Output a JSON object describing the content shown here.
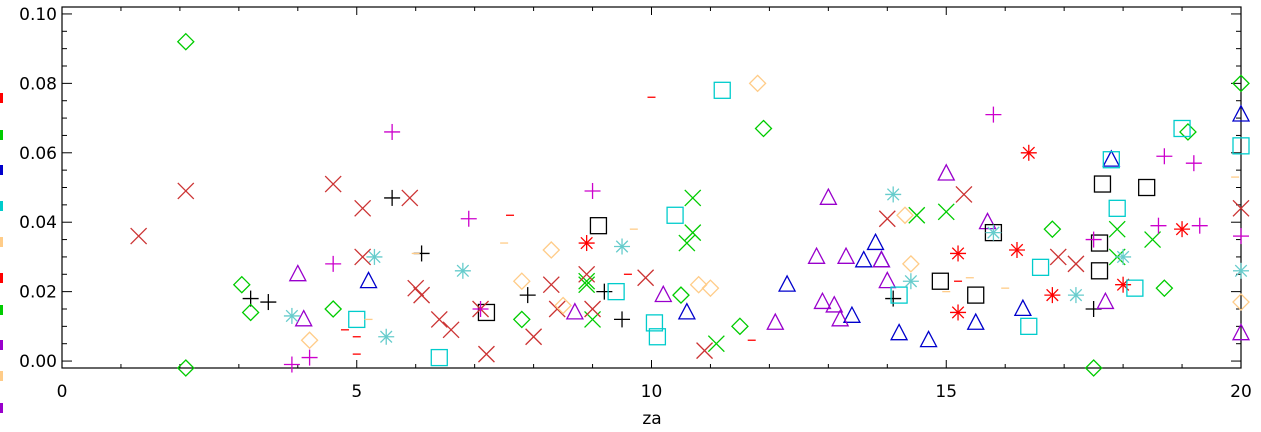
{
  "chart_data": {
    "type": "scatter",
    "xlabel": "za",
    "ylabel": "",
    "xlim": [
      0,
      20
    ],
    "ylim": [
      -0.002,
      0.102
    ],
    "xticks": [
      "0",
      "5",
      "10",
      "15",
      "20"
    ],
    "yticks": [
      "0.00",
      "0.02",
      "0.04",
      "0.06",
      "0.08",
      "0.10"
    ],
    "grid": false,
    "series": [
      {
        "marker": "plus",
        "color": "#000000",
        "points": [
          [
            3.2,
            0.018
          ],
          [
            3.5,
            0.017
          ],
          [
            5.6,
            0.047
          ],
          [
            6.1,
            0.031
          ],
          [
            7.9,
            0.019
          ],
          [
            9.2,
            0.02
          ],
          [
            9.5,
            0.012
          ],
          [
            14.1,
            0.018
          ],
          [
            17.5,
            0.015
          ]
        ]
      },
      {
        "marker": "asterisk",
        "color": "#ff0000",
        "points": [
          [
            8.9,
            0.034
          ],
          [
            15.2,
            0.031
          ],
          [
            15.2,
            0.014
          ],
          [
            16.2,
            0.032
          ],
          [
            16.4,
            0.06
          ],
          [
            16.8,
            0.019
          ],
          [
            18.0,
            0.022
          ],
          [
            19.0,
            0.038
          ]
        ]
      },
      {
        "marker": "dash",
        "color": "#ff0000",
        "points": [
          [
            4.8,
            0.009
          ],
          [
            5.0,
            0.007
          ],
          [
            5.0,
            0.002
          ],
          [
            7.6,
            0.042
          ],
          [
            9.6,
            0.025
          ],
          [
            10.0,
            0.076
          ],
          [
            11.7,
            0.006
          ],
          [
            15.2,
            0.023
          ]
        ]
      },
      {
        "marker": "diamond",
        "color": "#00cc00",
        "points": [
          [
            2.1,
            0.092
          ],
          [
            2.1,
            -0.002
          ],
          [
            3.05,
            0.022
          ],
          [
            3.2,
            0.014
          ],
          [
            4.6,
            0.015
          ],
          [
            7.8,
            0.012
          ],
          [
            10.5,
            0.019
          ],
          [
            11.5,
            0.01
          ],
          [
            11.9,
            0.067
          ],
          [
            16.8,
            0.038
          ],
          [
            17.5,
            -0.002
          ],
          [
            18.7,
            0.021
          ],
          [
            19.1,
            0.066
          ],
          [
            20.0,
            0.08
          ]
        ]
      },
      {
        "marker": "x",
        "color": "#00cc00",
        "points": [
          [
            8.9,
            0.023
          ],
          [
            8.9,
            0.022
          ],
          [
            9.0,
            0.012
          ],
          [
            10.6,
            0.034
          ],
          [
            10.7,
            0.037
          ],
          [
            10.7,
            0.047
          ],
          [
            11.1,
            0.005
          ],
          [
            14.5,
            0.042
          ],
          [
            15.0,
            0.043
          ],
          [
            17.9,
            0.038
          ],
          [
            17.9,
            0.03
          ],
          [
            18.5,
            0.035
          ]
        ]
      },
      {
        "marker": "triangle",
        "color": "#0000cc",
        "points": [
          [
            5.2,
            0.023
          ],
          [
            10.6,
            0.014
          ],
          [
            12.3,
            0.022
          ],
          [
            13.4,
            0.013
          ],
          [
            13.6,
            0.029
          ],
          [
            13.8,
            0.034
          ],
          [
            13.9,
            0.029
          ],
          [
            14.2,
            0.008
          ],
          [
            14.7,
            0.006
          ],
          [
            15.5,
            0.011
          ],
          [
            16.3,
            0.015
          ],
          [
            17.8,
            0.058
          ],
          [
            20.0,
            0.071
          ]
        ]
      },
      {
        "marker": "triangle",
        "color": "#9900cc",
        "points": [
          [
            4.0,
            0.025
          ],
          [
            4.1,
            0.012
          ],
          [
            8.7,
            0.014
          ],
          [
            10.2,
            0.019
          ],
          [
            12.1,
            0.011
          ],
          [
            12.8,
            0.03
          ],
          [
            12.9,
            0.017
          ],
          [
            13.0,
            0.047
          ],
          [
            13.1,
            0.016
          ],
          [
            13.2,
            0.012
          ],
          [
            13.3,
            0.03
          ],
          [
            13.9,
            0.029
          ],
          [
            14.0,
            0.023
          ],
          [
            15.0,
            0.054
          ],
          [
            15.7,
            0.04
          ],
          [
            17.7,
            0.017
          ],
          [
            20.0,
            0.008
          ]
        ]
      },
      {
        "marker": "square",
        "color": "#000000",
        "points": [
          [
            7.2,
            0.014
          ],
          [
            9.1,
            0.039
          ],
          [
            14.9,
            0.023
          ],
          [
            15.5,
            0.019
          ],
          [
            15.8,
            0.037
          ],
          [
            17.6,
            0.026
          ],
          [
            17.6,
            0.034
          ],
          [
            17.65,
            0.051
          ],
          [
            18.4,
            0.05
          ]
        ]
      },
      {
        "marker": "square",
        "color": "#00cccc",
        "points": [
          [
            5.0,
            0.012
          ],
          [
            6.4,
            0.001
          ],
          [
            9.4,
            0.02
          ],
          [
            10.05,
            0.011
          ],
          [
            10.1,
            0.007
          ],
          [
            10.4,
            0.042
          ],
          [
            11.2,
            0.078
          ],
          [
            14.2,
            0.019
          ],
          [
            16.4,
            0.01
          ],
          [
            16.6,
            0.027
          ],
          [
            17.8,
            0.058
          ],
          [
            17.9,
            0.044
          ],
          [
            18.2,
            0.021
          ],
          [
            19.0,
            0.067
          ],
          [
            20.0,
            0.062
          ]
        ]
      },
      {
        "marker": "asterisk",
        "color": "#66cccc",
        "points": [
          [
            3.9,
            0.013
          ],
          [
            5.3,
            0.03
          ],
          [
            5.5,
            0.007
          ],
          [
            6.8,
            0.026
          ],
          [
            9.5,
            0.033
          ],
          [
            14.1,
            0.048
          ],
          [
            14.4,
            0.023
          ],
          [
            15.8,
            0.037
          ],
          [
            17.2,
            0.019
          ],
          [
            18.0,
            0.03
          ],
          [
            20.0,
            0.026
          ]
        ]
      },
      {
        "marker": "x",
        "color": "#cc3333",
        "points": [
          [
            1.3,
            0.036
          ],
          [
            2.1,
            0.049
          ],
          [
            4.6,
            0.051
          ],
          [
            5.1,
            0.044
          ],
          [
            5.1,
            0.03
          ],
          [
            5.9,
            0.047
          ],
          [
            6.0,
            0.021
          ],
          [
            6.1,
            0.019
          ],
          [
            6.4,
            0.012
          ],
          [
            6.6,
            0.009
          ],
          [
            7.1,
            0.015
          ],
          [
            7.2,
            0.002
          ],
          [
            8.0,
            0.007
          ],
          [
            8.3,
            0.022
          ],
          [
            8.4,
            0.015
          ],
          [
            8.9,
            0.025
          ],
          [
            9.0,
            0.015
          ],
          [
            9.9,
            0.024
          ],
          [
            10.9,
            0.003
          ],
          [
            14.0,
            0.041
          ],
          [
            15.3,
            0.048
          ],
          [
            16.9,
            0.03
          ],
          [
            17.2,
            0.028
          ],
          [
            20.0,
            0.044
          ]
        ]
      },
      {
        "marker": "plus",
        "color": "#cc00cc",
        "points": [
          [
            3.9,
            -0.001
          ],
          [
            4.2,
            0.001
          ],
          [
            4.6,
            0.028
          ],
          [
            5.6,
            0.066
          ],
          [
            6.9,
            0.041
          ],
          [
            7.1,
            0.015
          ],
          [
            9.0,
            0.049
          ],
          [
            15.8,
            0.071
          ],
          [
            17.5,
            0.035
          ],
          [
            18.6,
            0.039
          ],
          [
            18.7,
            0.059
          ],
          [
            19.2,
            0.057
          ],
          [
            19.3,
            0.039
          ],
          [
            20.0,
            0.036
          ]
        ]
      },
      {
        "marker": "diamond",
        "color": "#ffcc88",
        "points": [
          [
            4.2,
            0.006
          ],
          [
            7.8,
            0.023
          ],
          [
            8.3,
            0.032
          ],
          [
            8.5,
            0.016
          ],
          [
            10.8,
            0.022
          ],
          [
            11.0,
            0.021
          ],
          [
            11.8,
            0.08
          ],
          [
            14.3,
            0.042
          ],
          [
            14.4,
            0.028
          ],
          [
            20.0,
            0.017
          ]
        ]
      },
      {
        "marker": "dash",
        "color": "#ffcc88",
        "points": [
          [
            5.2,
            0.012
          ],
          [
            6.0,
            0.031
          ],
          [
            7.5,
            0.034
          ],
          [
            9.7,
            0.038
          ],
          [
            15.0,
            0.02
          ],
          [
            15.4,
            0.024
          ],
          [
            16.0,
            0.021
          ],
          [
            19.9,
            0.053
          ]
        ]
      }
    ]
  }
}
